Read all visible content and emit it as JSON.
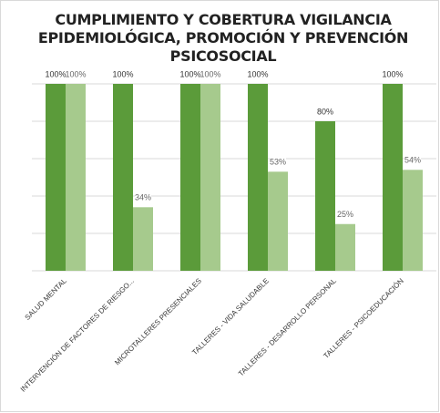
{
  "chart_data": {
    "type": "bar",
    "title": "CUMPLIMIENTO Y COBERTURA  VIGILANCIA EPIDEMIOLÓGICA, PROMOCIÓN Y PREVENCIÓN PSICOSOCIAL",
    "categories": [
      "SALUD MENTAL",
      "INTERVENCIÓN DE FACTORES DE RIESGO...",
      "MICROTALLERES PRESENCIALES",
      "TALLERES - VIDA SALUDABLE",
      "TALLERES - DESARROLLO PERSONAL",
      "TALLERES - PSICOEDUCACIÓN"
    ],
    "series": [
      {
        "color": "#5b9b3a",
        "values": [
          100,
          100,
          100,
          100,
          80,
          100
        ],
        "value_labels": [
          "100%",
          "100%",
          "100%",
          "100%",
          "80%",
          "100%"
        ]
      },
      {
        "color": "#a6ca8d",
        "values": [
          100,
          34,
          100,
          53,
          25,
          54
        ],
        "value_labels": [
          "100%",
          "34%",
          "100%",
          "53%",
          "25%",
          "54%"
        ]
      }
    ],
    "ylim": [
      0,
      100
    ],
    "yticks": [
      0,
      20,
      40,
      60,
      80,
      100
    ],
    "grid": true
  }
}
